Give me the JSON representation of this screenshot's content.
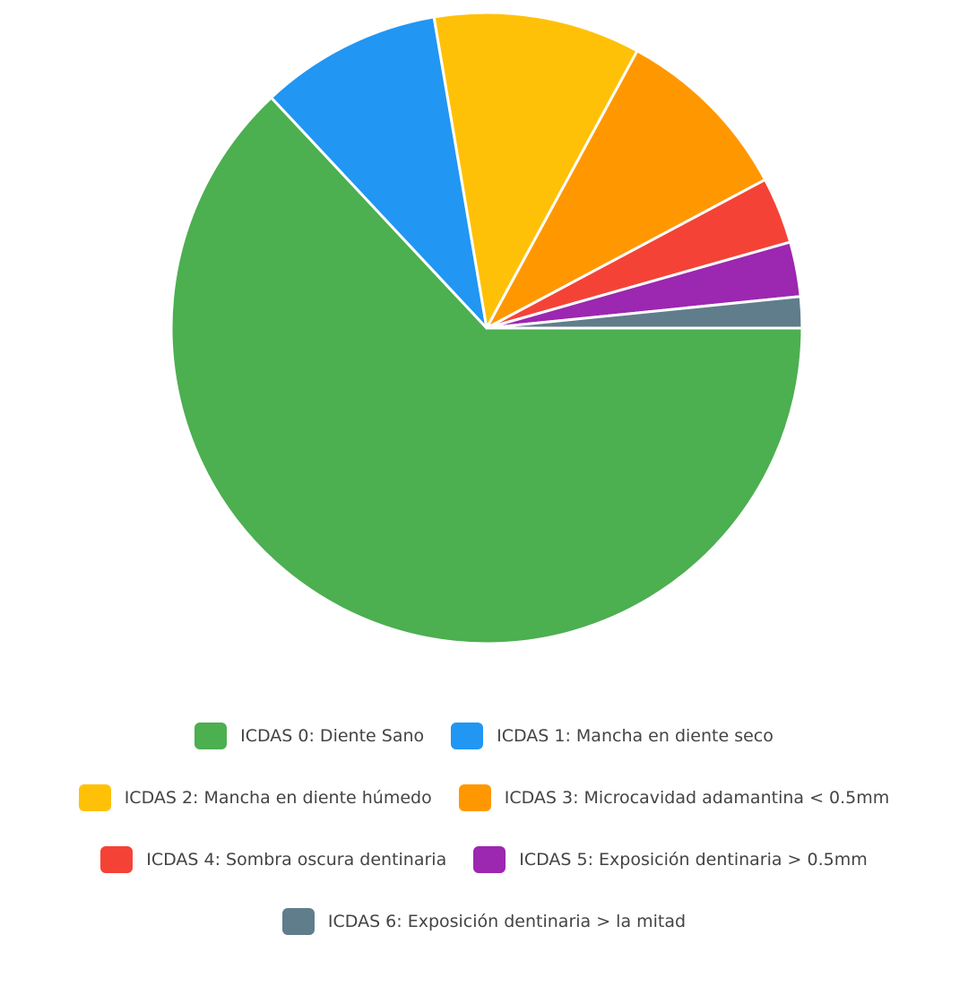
{
  "chart_data": {
    "type": "pie",
    "categories": [
      "ICDAS 0: Diente Sano",
      "ICDAS 1: Mancha en diente seco",
      "ICDAS 2: Mancha en diente húmedo",
      "ICDAS 3: Microcavidad adamantina < 0.5mm",
      "ICDAS 4: Sombra oscura dentinaria",
      "ICDAS 5: Exposición dentinaria > 0.5mm",
      "ICDAS 6: Exposición dentinaria > la mitad"
    ],
    "values": [
      63.1,
      9.3,
      10.6,
      9.3,
      3.4,
      2.8,
      1.6
    ],
    "colors": [
      "#4caf50",
      "#2196f3",
      "#ffc107",
      "#ff9800",
      "#f44336",
      "#9c27b0",
      "#607d8b"
    ],
    "legend": "bottom"
  }
}
